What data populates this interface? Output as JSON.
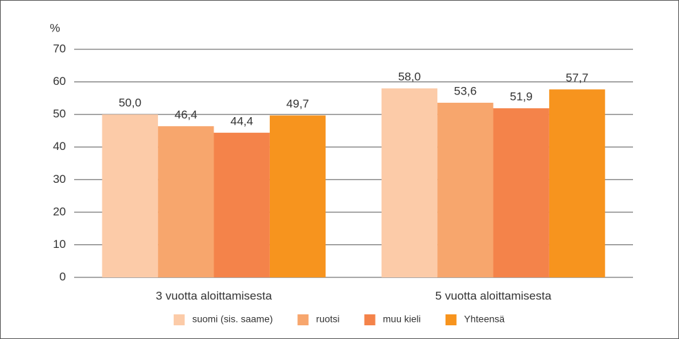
{
  "chart_data": {
    "type": "bar",
    "y_label": "%",
    "categories": [
      "3 vuotta aloittamisesta",
      "5 vuotta aloittamisesta"
    ],
    "series": [
      {
        "name": "suomi (sis. saame)",
        "color": "#fccba8",
        "values": [
          50.0,
          58.0
        ],
        "value_labels": [
          "50,0",
          "58,0"
        ]
      },
      {
        "name": "ruotsi",
        "color": "#f7a66d",
        "values": [
          46.4,
          53.6
        ],
        "value_labels": [
          "46,4",
          "53,6"
        ]
      },
      {
        "name": "muu kieli",
        "color": "#f4834a",
        "values": [
          44.4,
          51.9
        ],
        "value_labels": [
          "44,4",
          "51,9"
        ]
      },
      {
        "name": "Yhteensä",
        "color": "#f7941e",
        "values": [
          49.7,
          57.7
        ],
        "value_labels": [
          "49,7",
          "57,7"
        ]
      }
    ],
    "ylim": [
      0,
      70
    ],
    "yticks": [
      0,
      10,
      20,
      30,
      40,
      50,
      60,
      70
    ],
    "grid": true
  }
}
